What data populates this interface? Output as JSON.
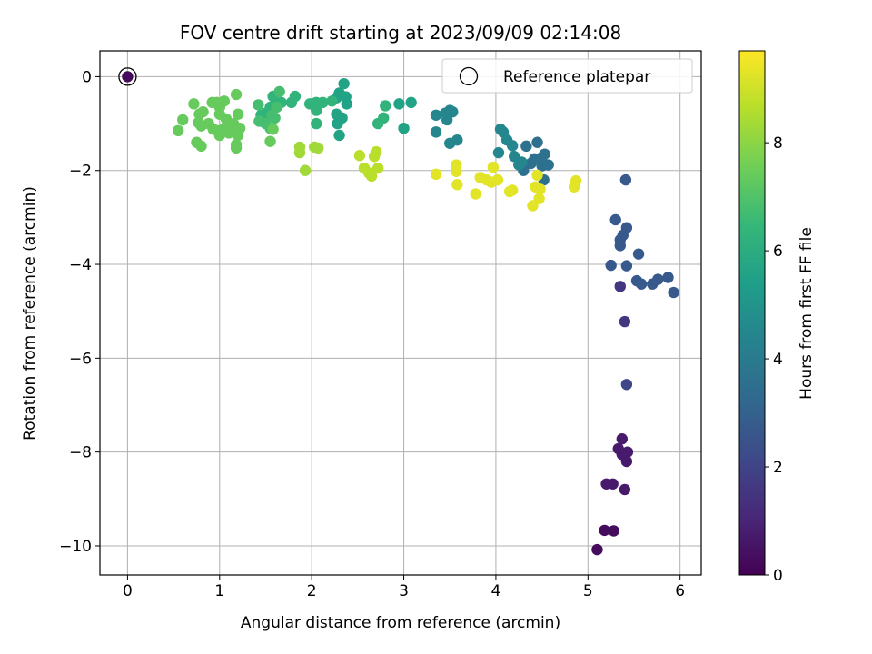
{
  "chart_data": {
    "type": "scatter",
    "title": "FOV centre drift starting at 2023/09/09 02:14:08",
    "xlabel": "Angular distance from reference (arcmin)",
    "ylabel": "Rotation from reference (arcmin)",
    "xlim": [
      -0.3,
      6.23
    ],
    "ylim": [
      -10.62,
      0.55
    ],
    "xticks": [
      0,
      1,
      2,
      3,
      4,
      5,
      6
    ],
    "yticks": [
      0,
      -2,
      -4,
      -6,
      -8,
      -10
    ],
    "xtick_labels": [
      "0",
      "1",
      "2",
      "3",
      "4",
      "5",
      "6"
    ],
    "ytick_labels": [
      "0",
      "−2",
      "−4",
      "−6",
      "−8",
      "−10"
    ],
    "grid": true,
    "legend": {
      "position": "top-right",
      "entries": [
        "Reference platepar"
      ]
    },
    "reference_point": {
      "x": 0.0,
      "y": 0.0,
      "label": "Reference platepar"
    },
    "colorbar": {
      "label": "Hours from first FF file",
      "colormap": "viridis",
      "range": [
        0,
        9.7
      ],
      "ticks": [
        0,
        2,
        4,
        6,
        8
      ],
      "tick_labels": [
        "0",
        "2",
        "4",
        "6",
        "8"
      ]
    },
    "colormap_stops": [
      "#440154",
      "#482878",
      "#3e4989",
      "#31688e",
      "#26828e",
      "#1f9e89",
      "#35b779",
      "#6ece58",
      "#b5de2b",
      "#fde725"
    ],
    "series": [
      {
        "hours": 0.25,
        "points": [
          [
            0.0,
            0.0
          ]
        ]
      },
      {
        "hours": 0.3,
        "points": [
          [
            5.1,
            -10.08
          ],
          [
            5.18,
            -9.67
          ],
          [
            5.28,
            -9.68
          ]
        ]
      },
      {
        "hours": 0.7,
        "points": [
          [
            5.2,
            -8.68
          ],
          [
            5.27,
            -8.68
          ],
          [
            5.4,
            -8.8
          ],
          [
            5.37,
            -7.72
          ],
          [
            5.33,
            -7.93
          ],
          [
            5.37,
            -8.05
          ],
          [
            5.43,
            -8.0
          ],
          [
            5.42,
            -8.2
          ]
        ]
      },
      {
        "hours": 1.6,
        "points": [
          [
            5.4,
            -5.22
          ],
          [
            5.35,
            -4.47
          ]
        ]
      },
      {
        "hours": 2.1,
        "points": [
          [
            5.42,
            -6.56
          ]
        ]
      },
      {
        "hours": 2.7,
        "points": [
          [
            5.25,
            -4.02
          ],
          [
            5.42,
            -4.03
          ],
          [
            5.42,
            -3.22
          ],
          [
            5.53,
            -4.35
          ],
          [
            5.58,
            -4.42
          ],
          [
            5.55,
            -3.78
          ],
          [
            5.7,
            -4.42
          ],
          [
            5.76,
            -4.32
          ],
          [
            5.87,
            -4.28
          ],
          [
            5.93,
            -4.6
          ],
          [
            5.3,
            -3.05
          ],
          [
            5.35,
            -3.48
          ],
          [
            5.38,
            -3.38
          ],
          [
            5.35,
            -3.6
          ],
          [
            5.41,
            -2.2
          ]
        ]
      },
      {
        "hours": 3.6,
        "points": [
          [
            4.33,
            -1.48
          ],
          [
            4.42,
            -1.75
          ],
          [
            4.5,
            -1.72
          ],
          [
            4.38,
            -1.85
          ],
          [
            4.3,
            -2.0
          ],
          [
            4.45,
            -1.4
          ],
          [
            4.5,
            -1.9
          ],
          [
            4.53,
            -1.65
          ],
          [
            4.57,
            -1.88
          ],
          [
            4.52,
            -2.2
          ]
        ]
      },
      {
        "hours": 4.5,
        "points": [
          [
            4.05,
            -1.12
          ],
          [
            4.08,
            -1.18
          ],
          [
            4.12,
            -1.35
          ],
          [
            4.18,
            -1.47
          ],
          [
            4.03,
            -1.62
          ],
          [
            4.2,
            -1.7
          ],
          [
            4.28,
            -1.82
          ],
          [
            4.25,
            -1.88
          ],
          [
            3.35,
            -0.82
          ],
          [
            3.45,
            -0.78
          ],
          [
            3.5,
            -0.72
          ],
          [
            3.53,
            -0.75
          ],
          [
            3.47,
            -0.92
          ],
          [
            3.5,
            -1.42
          ],
          [
            3.58,
            -1.35
          ],
          [
            3.35,
            -1.18
          ]
        ]
      },
      {
        "hours": 5.6,
        "points": [
          [
            2.95,
            -0.58
          ],
          [
            3.08,
            -0.55
          ],
          [
            3.0,
            -1.1
          ],
          [
            2.35,
            -0.15
          ],
          [
            2.37,
            -0.43
          ],
          [
            2.38,
            -0.58
          ],
          [
            2.3,
            -0.35
          ],
          [
            2.27,
            -0.45
          ],
          [
            2.27,
            -0.8
          ],
          [
            2.33,
            -0.88
          ],
          [
            2.28,
            -1.0
          ],
          [
            2.3,
            -1.25
          ]
        ]
      },
      {
        "hours": 6.3,
        "points": [
          [
            2.8,
            -0.62
          ],
          [
            2.78,
            -0.88
          ],
          [
            2.72,
            -1.0
          ],
          [
            2.22,
            -0.52
          ],
          [
            2.12,
            -0.55
          ],
          [
            2.05,
            -0.55
          ],
          [
            1.98,
            -0.58
          ],
          [
            2.05,
            -0.72
          ],
          [
            2.05,
            -1.0
          ],
          [
            1.82,
            -0.42
          ],
          [
            1.78,
            -0.55
          ],
          [
            1.67,
            -0.55
          ],
          [
            1.6,
            -0.6
          ],
          [
            1.58,
            -0.42
          ],
          [
            1.55,
            -0.65
          ],
          [
            1.5,
            -0.78
          ],
          [
            1.45,
            -0.82
          ]
        ]
      },
      {
        "hours": 6.8,
        "points": [
          [
            1.65,
            -0.32
          ],
          [
            1.62,
            -0.65
          ],
          [
            1.6,
            -0.88
          ],
          [
            1.42,
            -0.6
          ],
          [
            1.43,
            -0.95
          ],
          [
            1.55,
            -1.1
          ],
          [
            1.5,
            -1.0
          ],
          [
            1.57,
            -0.82
          ]
        ]
      },
      {
        "hours": 7.4,
        "points": [
          [
            1.55,
            -1.38
          ],
          [
            1.58,
            -1.12
          ],
          [
            1.18,
            -0.38
          ],
          [
            1.05,
            -0.52
          ],
          [
            0.97,
            -0.55
          ],
          [
            0.92,
            -0.55
          ],
          [
            1.0,
            -0.65
          ],
          [
            1.0,
            -0.8
          ],
          [
            1.07,
            -0.9
          ],
          [
            1.05,
            -1.1
          ],
          [
            1.15,
            -1.0
          ],
          [
            1.2,
            -0.8
          ],
          [
            1.22,
            -1.1
          ],
          [
            1.15,
            -1.15
          ],
          [
            1.2,
            -1.25
          ],
          [
            1.18,
            -1.45
          ],
          [
            1.18,
            -1.52
          ],
          [
            0.72,
            -0.58
          ],
          [
            0.78,
            -0.8
          ],
          [
            0.82,
            -0.75
          ],
          [
            0.77,
            -0.98
          ],
          [
            0.8,
            -1.05
          ],
          [
            0.88,
            -1.0
          ],
          [
            0.93,
            -1.12
          ],
          [
            0.98,
            -1.15
          ],
          [
            1.0,
            -1.25
          ],
          [
            1.1,
            -1.2
          ],
          [
            0.75,
            -1.4
          ],
          [
            0.8,
            -1.48
          ],
          [
            0.6,
            -0.92
          ],
          [
            0.55,
            -1.15
          ]
        ]
      },
      {
        "hours": 8.3,
        "points": [
          [
            1.87,
            -1.5
          ],
          [
            1.87,
            -1.62
          ],
          [
            1.93,
            -2.0
          ],
          [
            2.03,
            -1.5
          ],
          [
            2.07,
            -1.52
          ]
        ]
      },
      {
        "hours": 8.7,
        "points": [
          [
            2.52,
            -1.68
          ],
          [
            2.57,
            -1.95
          ],
          [
            2.62,
            -2.05
          ],
          [
            2.65,
            -2.12
          ],
          [
            2.68,
            -1.7
          ],
          [
            2.7,
            -1.6
          ],
          [
            2.72,
            -1.95
          ]
        ]
      },
      {
        "hours": 9.3,
        "points": [
          [
            3.35,
            -2.08
          ],
          [
            3.57,
            -1.88
          ],
          [
            3.57,
            -2.02
          ],
          [
            3.58,
            -2.3
          ],
          [
            3.78,
            -2.5
          ],
          [
            3.83,
            -2.15
          ],
          [
            3.9,
            -2.2
          ],
          [
            3.95,
            -2.25
          ],
          [
            3.97,
            -1.93
          ],
          [
            4.02,
            -2.2
          ],
          [
            4.15,
            -2.45
          ],
          [
            4.18,
            -2.42
          ],
          [
            4.4,
            -2.75
          ],
          [
            4.45,
            -2.1
          ],
          [
            4.43,
            -2.35
          ],
          [
            4.48,
            -2.4
          ],
          [
            4.47,
            -2.6
          ],
          [
            4.85,
            -2.35
          ],
          [
            4.87,
            -2.22
          ]
        ]
      }
    ]
  }
}
